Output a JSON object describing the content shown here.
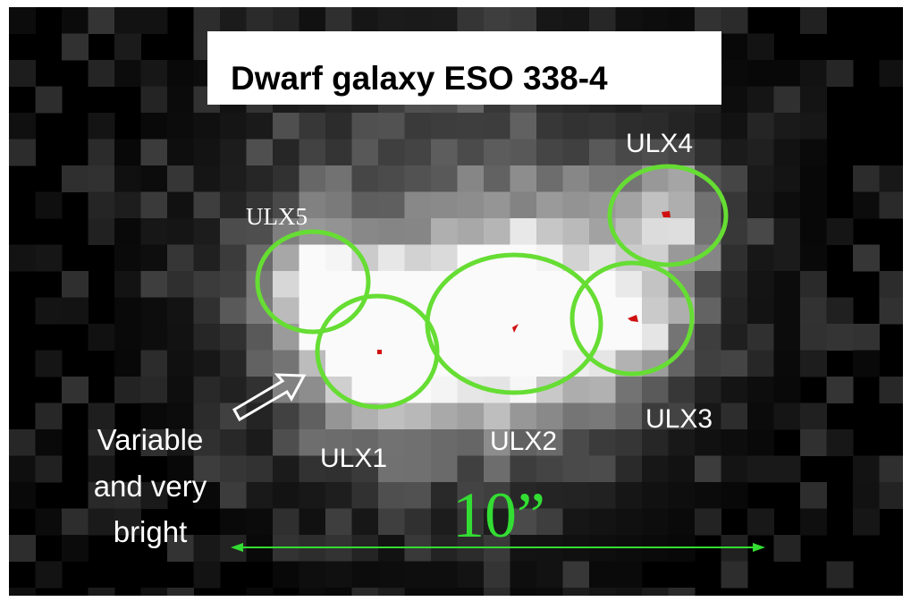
{
  "title": "Dwarf galaxy ESO 338-4",
  "sources": [
    {
      "label": "ULX1"
    },
    {
      "label": "ULX2"
    },
    {
      "label": "ULX3"
    },
    {
      "label": "ULX4"
    },
    {
      "label": "ULX5"
    }
  ],
  "annotation": {
    "lines": [
      "Variable",
      "and very",
      "bright"
    ]
  },
  "scale_bar": {
    "label": "10”"
  }
}
